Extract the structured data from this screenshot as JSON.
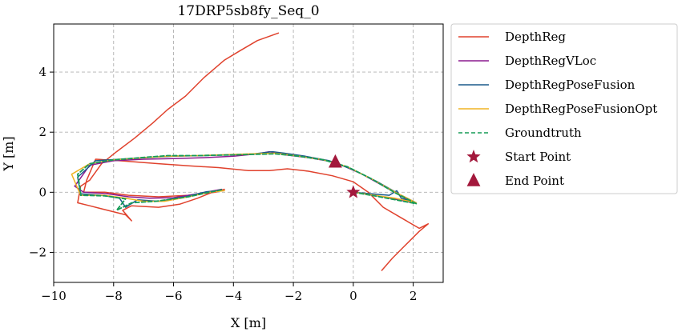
{
  "chart_data": {
    "type": "line",
    "title": "17DRP5sb8fy_Seq_0",
    "xlabel": "X [m]",
    "ylabel": "Y [m]",
    "xlim": [
      -10,
      3
    ],
    "ylim": [
      -3,
      5.6
    ],
    "grid": true,
    "legend_position": "outside-right",
    "x_ticks": [
      -10,
      -8,
      -6,
      -4,
      -2,
      0,
      2
    ],
    "x_tick_labels": [
      "−10",
      "−8",
      "−6",
      "−4",
      "−2",
      "0",
      "2"
    ],
    "y_ticks": [
      -2,
      0,
      2,
      4
    ],
    "y_tick_labels": [
      "−2",
      "0",
      "2",
      "4"
    ],
    "series": [
      {
        "name": "DepthReg",
        "color": "#e0422d",
        "style": "solid",
        "points": [
          [
            -2.5,
            5.3
          ],
          [
            -3.2,
            5.05
          ],
          [
            -3.8,
            4.7
          ],
          [
            -4.3,
            4.4
          ],
          [
            -5.0,
            3.8
          ],
          [
            -5.6,
            3.2
          ],
          [
            -6.2,
            2.75
          ],
          [
            -6.7,
            2.3
          ],
          [
            -7.3,
            1.8
          ],
          [
            -7.9,
            1.35
          ],
          [
            -8.4,
            0.95
          ],
          [
            -8.8,
            0.4
          ],
          [
            -9.1,
            0.2
          ],
          [
            -9.2,
            -0.35
          ],
          [
            -8.8,
            -0.45
          ],
          [
            -8.2,
            -0.6
          ],
          [
            -7.6,
            -0.75
          ],
          [
            -7.4,
            -0.95
          ],
          [
            -7.7,
            -0.6
          ],
          [
            -7.4,
            -0.45
          ],
          [
            -6.5,
            -0.5
          ],
          [
            -5.8,
            -0.4
          ],
          [
            -5.2,
            -0.2
          ],
          [
            -4.7,
            0.0
          ],
          [
            -4.3,
            0.1
          ],
          [
            -4.6,
            0.0
          ],
          [
            -5.5,
            -0.1
          ],
          [
            -6.5,
            -0.15
          ],
          [
            -7.5,
            -0.1
          ],
          [
            -8.3,
            0.0
          ],
          [
            -9.0,
            0.0
          ],
          [
            -8.9,
            0.4
          ],
          [
            -8.6,
            1.1
          ],
          [
            -7.8,
            1.05
          ],
          [
            -6.5,
            0.95
          ],
          [
            -5.5,
            0.88
          ],
          [
            -4.5,
            0.82
          ],
          [
            -3.5,
            0.72
          ],
          [
            -2.8,
            0.72
          ],
          [
            -2.2,
            0.78
          ],
          [
            -1.5,
            0.7
          ],
          [
            -0.7,
            0.55
          ],
          [
            0.0,
            0.35
          ],
          [
            0.5,
            0.0
          ],
          [
            1.0,
            -0.5
          ],
          [
            1.6,
            -0.85
          ],
          [
            2.2,
            -1.2
          ],
          [
            2.5,
            -1.05
          ],
          [
            2.2,
            -1.3
          ],
          [
            1.7,
            -1.8
          ],
          [
            1.3,
            -2.2
          ],
          [
            0.95,
            -2.6
          ]
        ]
      },
      {
        "name": "DepthRegVLoc",
        "color": "#8b1a8f",
        "style": "solid",
        "points": [
          [
            0.0,
            0.0
          ],
          [
            1.0,
            -0.15
          ],
          [
            2.0,
            -0.35
          ],
          [
            1.2,
            0.1
          ],
          [
            0.3,
            0.6
          ],
          [
            -0.6,
            1.0
          ],
          [
            -1.5,
            1.15
          ],
          [
            -2.3,
            1.25
          ],
          [
            -2.8,
            1.35
          ],
          [
            -3.2,
            1.28
          ],
          [
            -4.0,
            1.2
          ],
          [
            -5.0,
            1.15
          ],
          [
            -6.0,
            1.12
          ],
          [
            -7.0,
            1.1
          ],
          [
            -8.0,
            1.05
          ],
          [
            -8.8,
            0.9
          ],
          [
            -9.3,
            0.2
          ],
          [
            -9.0,
            0.0
          ],
          [
            -8.2,
            -0.05
          ],
          [
            -7.5,
            -0.15
          ],
          [
            -6.8,
            -0.2
          ],
          [
            -6.0,
            -0.18
          ],
          [
            -5.2,
            -0.05
          ],
          [
            -4.4,
            0.1
          ]
        ]
      },
      {
        "name": "DepthRegPoseFusion",
        "color": "#1a5a8c",
        "style": "solid",
        "points": [
          [
            0.0,
            0.0
          ],
          [
            0.6,
            -0.05
          ],
          [
            1.2,
            -0.1
          ],
          [
            1.45,
            0.05
          ],
          [
            1.6,
            -0.2
          ],
          [
            2.1,
            -0.35
          ],
          [
            1.6,
            -0.1
          ],
          [
            0.8,
            0.35
          ],
          [
            0.0,
            0.75
          ],
          [
            -0.8,
            1.05
          ],
          [
            -1.6,
            1.2
          ],
          [
            -2.3,
            1.3
          ],
          [
            -2.7,
            1.35
          ],
          [
            -3.3,
            1.28
          ],
          [
            -4.0,
            1.25
          ],
          [
            -5.0,
            1.22
          ],
          [
            -6.0,
            1.2
          ],
          [
            -7.0,
            1.15
          ],
          [
            -7.8,
            1.1
          ],
          [
            -8.6,
            1.05
          ],
          [
            -9.2,
            0.5
          ],
          [
            -9.1,
            -0.05
          ],
          [
            -8.4,
            -0.1
          ],
          [
            -7.8,
            -0.2
          ],
          [
            -7.6,
            -0.5
          ],
          [
            -7.2,
            -0.25
          ],
          [
            -6.5,
            -0.3
          ],
          [
            -5.6,
            -0.15
          ],
          [
            -4.9,
            0.02
          ],
          [
            -4.4,
            0.05
          ]
        ]
      },
      {
        "name": "DepthRegPoseFusionOpt",
        "color": "#f0b323",
        "style": "solid",
        "points": [
          [
            0.0,
            0.0
          ],
          [
            0.7,
            -0.1
          ],
          [
            1.4,
            -0.2
          ],
          [
            2.1,
            -0.35
          ],
          [
            1.4,
            0.0
          ],
          [
            0.6,
            0.45
          ],
          [
            -0.2,
            0.85
          ],
          [
            -1.0,
            1.08
          ],
          [
            -1.8,
            1.2
          ],
          [
            -2.6,
            1.3
          ],
          [
            -3.4,
            1.28
          ],
          [
            -4.3,
            1.25
          ],
          [
            -5.2,
            1.22
          ],
          [
            -6.2,
            1.2
          ],
          [
            -7.0,
            1.15
          ],
          [
            -8.0,
            1.08
          ],
          [
            -8.8,
            0.95
          ],
          [
            -9.4,
            0.6
          ],
          [
            -9.1,
            -0.1
          ],
          [
            -8.3,
            -0.1
          ],
          [
            -7.6,
            -0.2
          ],
          [
            -7.0,
            -0.3
          ],
          [
            -6.3,
            -0.3
          ],
          [
            -5.5,
            -0.15
          ],
          [
            -4.8,
            0.0
          ],
          [
            -4.3,
            0.05
          ]
        ]
      },
      {
        "name": "Groundtruth",
        "color": "#169c57",
        "style": "dashed",
        "points": [
          [
            0.0,
            0.0
          ],
          [
            0.7,
            -0.12
          ],
          [
            1.4,
            -0.25
          ],
          [
            2.1,
            -0.38
          ],
          [
            1.4,
            -0.02
          ],
          [
            0.6,
            0.45
          ],
          [
            -0.2,
            0.85
          ],
          [
            -1.0,
            1.08
          ],
          [
            -1.8,
            1.2
          ],
          [
            -2.6,
            1.28
          ],
          [
            -3.4,
            1.26
          ],
          [
            -4.3,
            1.24
          ],
          [
            -5.2,
            1.22
          ],
          [
            -6.2,
            1.22
          ],
          [
            -7.0,
            1.16
          ],
          [
            -8.0,
            1.08
          ],
          [
            -8.8,
            0.95
          ],
          [
            -9.2,
            0.6
          ],
          [
            -9.1,
            0.0
          ],
          [
            -9.1,
            -0.1
          ],
          [
            -8.3,
            -0.12
          ],
          [
            -7.6,
            -0.22
          ],
          [
            -7.9,
            -0.6
          ],
          [
            -7.4,
            -0.35
          ],
          [
            -6.6,
            -0.3
          ],
          [
            -5.5,
            -0.15
          ],
          [
            -4.8,
            0.0
          ],
          [
            -4.4,
            0.08
          ]
        ]
      }
    ],
    "markers": [
      {
        "name": "Start Point",
        "shape": "star",
        "color": "#a3183c",
        "x": 0.0,
        "y": 0.0
      },
      {
        "name": "End Point",
        "shape": "triangle",
        "color": "#a3183c",
        "x": -0.6,
        "y": 1.0
      }
    ]
  }
}
